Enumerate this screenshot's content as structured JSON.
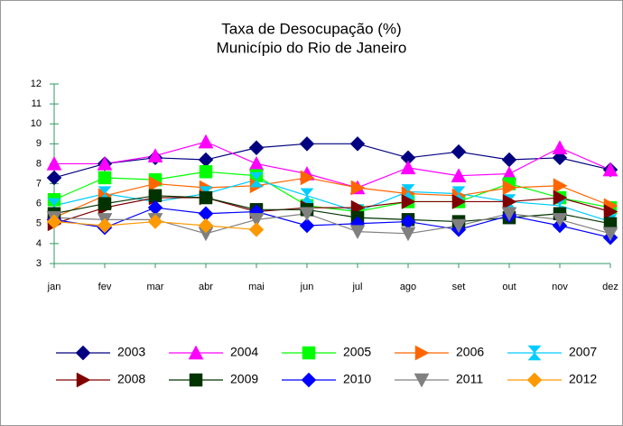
{
  "chart_data": {
    "type": "line",
    "title": "Taxa de Desocupação (%)",
    "subtitle": "Município do Rio de Janeiro",
    "categories": [
      "jan",
      "fev",
      "mar",
      "abr",
      "mai",
      "jun",
      "jul",
      "ago",
      "set",
      "out",
      "nov",
      "dez"
    ],
    "ylim": [
      3,
      12
    ],
    "yticks": [
      3,
      4,
      5,
      6,
      7,
      8,
      9,
      10,
      11,
      12
    ],
    "axis_color": "#339966",
    "series": [
      {
        "name": "2003",
        "color": "#000080",
        "marker": "diamond",
        "values": [
          7.3,
          8.0,
          8.3,
          8.2,
          8.8,
          9.0,
          9.0,
          8.3,
          8.6,
          8.2,
          8.3,
          7.7
        ]
      },
      {
        "name": "2004",
        "color": "#ff00ff",
        "marker": "triangle-up",
        "values": [
          8.0,
          8.0,
          8.4,
          9.1,
          8.0,
          7.5,
          6.8,
          7.8,
          7.4,
          7.5,
          8.8,
          7.7
        ]
      },
      {
        "name": "2005",
        "color": "#00ff00",
        "marker": "square",
        "values": [
          6.2,
          7.3,
          7.2,
          7.6,
          7.4,
          5.9,
          5.6,
          6.1,
          6.1,
          7.0,
          6.3,
          5.8
        ]
      },
      {
        "name": "2006",
        "color": "#ff6600",
        "marker": "triangle-right",
        "values": [
          5.3,
          6.4,
          7.0,
          6.8,
          6.9,
          7.3,
          6.8,
          6.5,
          6.4,
          6.8,
          6.9,
          5.9
        ]
      },
      {
        "name": "2007",
        "color": "#00ccff",
        "marker": "hourglass",
        "values": [
          5.9,
          6.5,
          6.1,
          6.5,
          7.2,
          6.4,
          5.6,
          6.6,
          6.5,
          6.1,
          5.9,
          5.1
        ]
      },
      {
        "name": "2008",
        "color": "#800000",
        "marker": "triangle-right",
        "values": [
          5.0,
          5.8,
          6.3,
          6.3,
          5.6,
          5.8,
          5.8,
          6.1,
          6.1,
          6.1,
          6.3,
          5.6
        ]
      },
      {
        "name": "2009",
        "color": "#003300",
        "marker": "square",
        "values": [
          5.5,
          6.0,
          6.4,
          6.3,
          5.7,
          5.7,
          5.3,
          5.2,
          5.1,
          5.3,
          5.5,
          5.0
        ]
      },
      {
        "name": "2010",
        "color": "#0000ff",
        "marker": "diamond",
        "values": [
          5.2,
          4.8,
          5.8,
          5.5,
          5.6,
          4.9,
          5.0,
          5.1,
          4.7,
          5.4,
          4.9,
          4.3
        ]
      },
      {
        "name": "2011",
        "color": "#808080",
        "marker": "triangle-down",
        "values": [
          5.3,
          5.2,
          5.2,
          4.5,
          5.2,
          5.5,
          4.6,
          4.5,
          4.9,
          5.5,
          5.2,
          4.5
        ]
      },
      {
        "name": "2012",
        "color": "#ff9900",
        "marker": "diamond",
        "values": [
          5.1,
          4.9,
          5.1,
          4.9,
          4.7,
          null,
          null,
          null,
          null,
          null,
          null,
          null
        ]
      }
    ]
  }
}
